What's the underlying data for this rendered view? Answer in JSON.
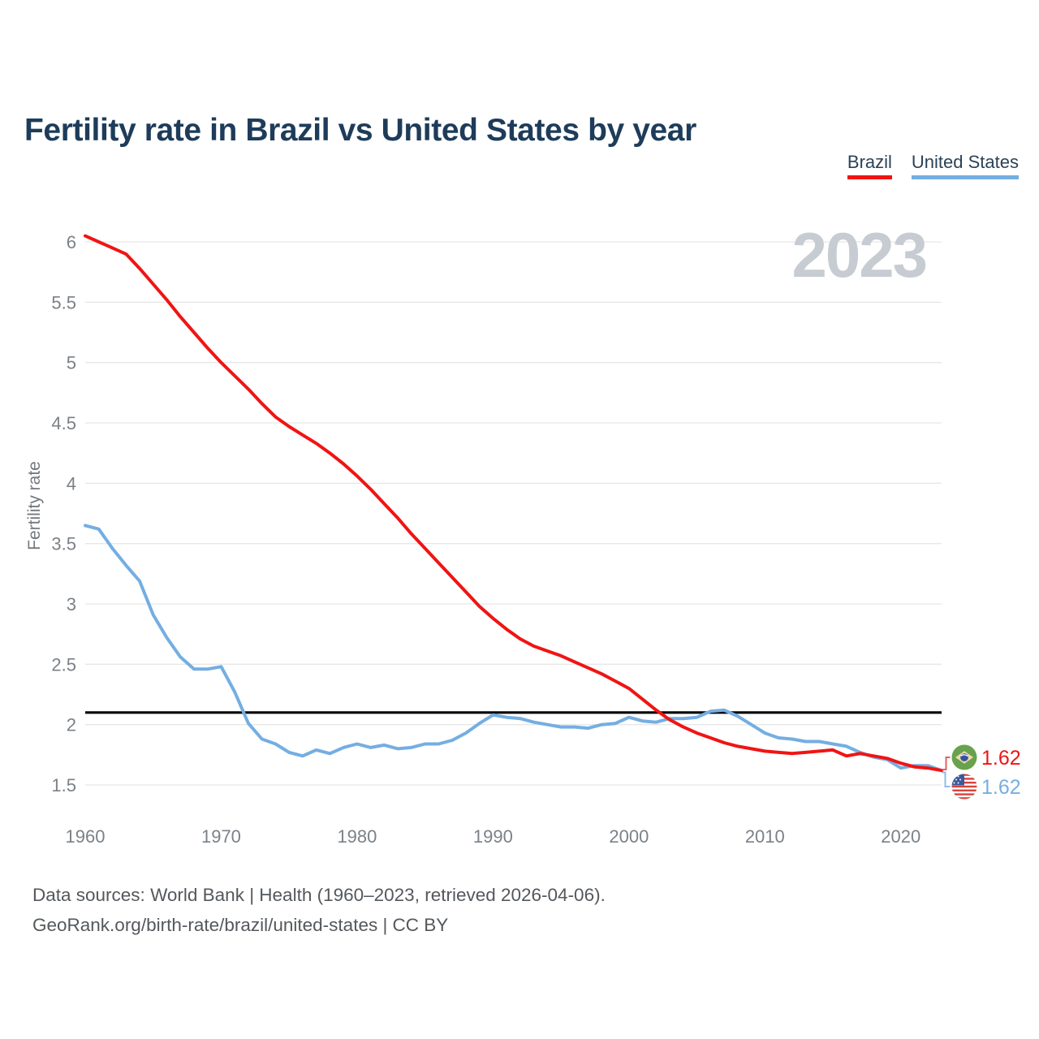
{
  "title": "Fertility rate in Brazil vs United States by year",
  "watermark_year": "2023",
  "legend": {
    "items": [
      {
        "label": "Brazil",
        "color": "#f01414"
      },
      {
        "label": "United States",
        "color": "#74aee2"
      }
    ]
  },
  "end_labels": [
    {
      "country": "Brazil",
      "value": "1.62",
      "color": "#f01414",
      "icon": "brazil-flag-icon"
    },
    {
      "country": "United States",
      "value": "1.62",
      "color": "#74aee2",
      "icon": "us-flag-icon"
    }
  ],
  "footer": {
    "line1": "Data sources: World Bank | Health (1960–2023, retrieved 2026-04-06).",
    "line2": "GeoRank.org/birth-rate/brazil/united-states | CC BY"
  },
  "chart_data": {
    "type": "line",
    "title": "Fertility rate in Brazil vs United States by year",
    "xlabel": "",
    "ylabel": "Fertility rate",
    "x_start": 1960,
    "x_end": 2023,
    "x_step": 1,
    "xlim": [
      1960,
      2023
    ],
    "ylim": [
      1.5,
      6.05
    ],
    "x_ticks": [
      1960,
      1970,
      1980,
      1990,
      2000,
      2010,
      2020
    ],
    "y_ticks": [
      1.5,
      2,
      2.5,
      3,
      3.5,
      4,
      4.5,
      5,
      5.5,
      6
    ],
    "grid": "horizontal",
    "legend_position": "top-right",
    "reference_line": {
      "value": 2.1,
      "color": "#000000"
    },
    "series": [
      {
        "name": "Brazil",
        "color": "#f01414",
        "values": [
          6.05,
          6.0,
          5.95,
          5.9,
          5.78,
          5.65,
          5.52,
          5.38,
          5.25,
          5.12,
          5.0,
          4.89,
          4.78,
          4.66,
          4.55,
          4.47,
          4.4,
          4.33,
          4.25,
          4.16,
          4.06,
          3.95,
          3.83,
          3.71,
          3.58,
          3.46,
          3.34,
          3.22,
          3.1,
          2.98,
          2.88,
          2.79,
          2.71,
          2.65,
          2.61,
          2.57,
          2.52,
          2.47,
          2.42,
          2.36,
          2.3,
          2.21,
          2.12,
          2.04,
          1.98,
          1.93,
          1.89,
          1.85,
          1.82,
          1.8,
          1.78,
          1.77,
          1.76,
          1.77,
          1.78,
          1.79,
          1.74,
          1.76,
          1.74,
          1.72,
          1.68,
          1.65,
          1.64,
          1.62
        ]
      },
      {
        "name": "United States",
        "color": "#74aee2",
        "values": [
          3.65,
          3.62,
          3.46,
          3.32,
          3.19,
          2.91,
          2.72,
          2.56,
          2.46,
          2.46,
          2.48,
          2.27,
          2.01,
          1.88,
          1.84,
          1.77,
          1.74,
          1.79,
          1.76,
          1.81,
          1.84,
          1.81,
          1.83,
          1.8,
          1.81,
          1.84,
          1.84,
          1.87,
          1.93,
          2.01,
          2.08,
          2.06,
          2.05,
          2.02,
          2.0,
          1.98,
          1.98,
          1.97,
          2.0,
          2.01,
          2.06,
          2.03,
          2.02,
          2.05,
          2.05,
          2.06,
          2.11,
          2.12,
          2.07,
          2.0,
          1.93,
          1.89,
          1.88,
          1.86,
          1.86,
          1.84,
          1.82,
          1.77,
          1.73,
          1.71,
          1.64,
          1.66,
          1.66,
          1.62
        ]
      }
    ]
  }
}
